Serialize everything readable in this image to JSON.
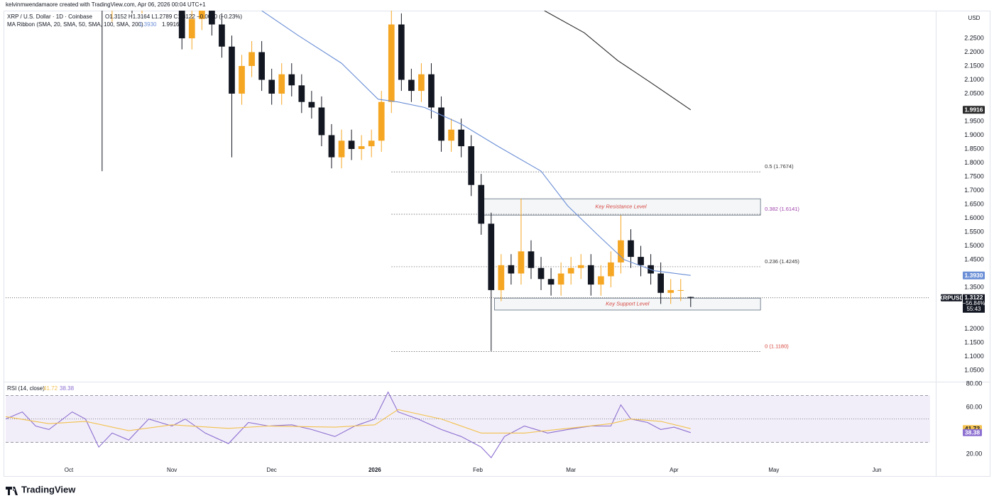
{
  "watermark": "kelvinmwendamaore created with TradingView.com, Apr 06, 2026 00:04 UTC+1",
  "logo": "TradingView",
  "chart_data": [
    {
      "type": "candlestick",
      "title": "XRP / U.S. Dollar · 1D · Coinbase",
      "ohlc_text": "O1.3152 H1.3164 L1.2789 C1.3122 −0.0030 (−0.23%)",
      "currency": "USD",
      "up_color": "#f5a623",
      "down_color": "#131722",
      "x": [
        4,
        7,
        10,
        13,
        16,
        19,
        22,
        25,
        28,
        31,
        34,
        37,
        40,
        43,
        46,
        49,
        52,
        55,
        58,
        61,
        64,
        67,
        70,
        73,
        76,
        79,
        82,
        85,
        88,
        91,
        94,
        97,
        100,
        103,
        106,
        109,
        112,
        115,
        118,
        121,
        124,
        127,
        130,
        133,
        136,
        139,
        142,
        145,
        148,
        151,
        154,
        157,
        160,
        163,
        166,
        169,
        172,
        175,
        178,
        181,
        184,
        187
      ],
      "open": [
        3.0,
        2.95,
        2.85,
        2.35,
        2.4,
        2.45,
        2.38,
        2.4,
        2.55,
        2.5,
        2.45,
        2.25,
        2.32,
        2.38,
        2.3,
        2.22,
        2.05,
        2.15,
        2.2,
        2.1,
        2.05,
        2.12,
        2.08,
        2.02,
        2.0,
        1.9,
        1.82,
        1.88,
        1.85,
        1.86,
        1.88,
        2.02,
        2.3,
        2.1,
        2.06,
        2.12,
        2.0,
        1.88,
        1.92,
        1.86,
        1.72,
        1.58,
        1.34,
        1.43,
        1.4,
        1.48,
        1.42,
        1.38,
        1.36,
        1.4,
        1.42,
        1.43,
        1.36,
        1.39,
        1.44,
        1.52,
        1.46,
        1.43,
        1.4,
        1.33,
        1.34,
        1.3152
      ],
      "high": [
        3.04,
        2.99,
        2.89,
        2.44,
        2.49,
        2.49,
        2.44,
        2.59,
        2.59,
        2.54,
        2.49,
        2.36,
        2.42,
        2.42,
        2.34,
        2.26,
        2.19,
        2.24,
        2.24,
        2.14,
        2.16,
        2.16,
        2.12,
        2.06,
        2.04,
        1.94,
        1.92,
        1.92,
        1.9,
        1.92,
        2.06,
        2.36,
        2.34,
        2.14,
        2.16,
        2.16,
        2.04,
        1.96,
        1.96,
        1.9,
        1.76,
        1.62,
        1.47,
        1.47,
        1.67,
        1.52,
        1.46,
        1.42,
        1.44,
        1.46,
        1.47,
        1.47,
        1.43,
        1.48,
        1.61,
        1.56,
        1.5,
        1.47,
        1.44,
        1.38,
        1.38,
        1.3164
      ],
      "low": [
        2.91,
        2.81,
        1.77,
        2.31,
        2.36,
        2.34,
        2.34,
        2.36,
        2.46,
        2.41,
        2.21,
        2.21,
        2.28,
        2.26,
        2.18,
        1.82,
        2.01,
        2.11,
        2.06,
        2.01,
        2.01,
        2.04,
        1.98,
        1.96,
        1.86,
        1.78,
        1.78,
        1.81,
        1.81,
        1.82,
        1.84,
        1.98,
        2.06,
        2.02,
        2.02,
        1.96,
        1.84,
        1.84,
        1.82,
        1.68,
        1.54,
        1.12,
        1.3,
        1.36,
        1.36,
        1.38,
        1.34,
        1.32,
        1.32,
        1.36,
        1.38,
        1.32,
        1.32,
        1.35,
        1.4,
        1.42,
        1.39,
        1.36,
        1.29,
        1.29,
        1.3,
        1.2789
      ],
      "close": [
        2.95,
        2.85,
        2.35,
        2.4,
        2.45,
        2.38,
        2.4,
        2.55,
        2.5,
        2.45,
        2.25,
        2.32,
        2.38,
        2.3,
        2.22,
        2.05,
        2.15,
        2.2,
        2.1,
        2.05,
        2.12,
        2.08,
        2.02,
        2.0,
        1.9,
        1.82,
        1.88,
        1.85,
        1.86,
        1.88,
        2.02,
        2.3,
        2.1,
        2.06,
        2.12,
        2.0,
        1.88,
        1.92,
        1.86,
        1.72,
        1.58,
        1.34,
        1.43,
        1.4,
        1.48,
        1.42,
        1.38,
        1.36,
        1.4,
        1.42,
        1.43,
        1.36,
        1.39,
        1.44,
        1.52,
        1.46,
        1.43,
        1.4,
        1.33,
        1.34,
        1.34,
        1.3122
      ],
      "xlim": [
        -19,
        259
      ],
      "xticks": [
        {
          "value": 0,
          "label": "Oct"
        },
        {
          "value": 31,
          "label": "Nov"
        },
        {
          "value": 61,
          "label": "Dec"
        },
        {
          "value": 92,
          "label": "2026"
        },
        {
          "value": 123,
          "label": "Feb"
        },
        {
          "value": 151,
          "label": "Mar"
        },
        {
          "value": 182,
          "label": "Apr"
        },
        {
          "value": 212,
          "label": "May"
        },
        {
          "value": 243,
          "label": "Jun"
        }
      ],
      "ylim": [
        1.009,
        2.35
      ],
      "yticks": [
        {
          "value": 2.25,
          "label": "2.2500"
        },
        {
          "value": 2.2,
          "label": "2.2000"
        },
        {
          "value": 2.15,
          "label": "2.1500"
        },
        {
          "value": 2.1,
          "label": "2.1000"
        },
        {
          "value": 2.05,
          "label": "2.0500"
        },
        {
          "value": 1.95,
          "label": "1.9500"
        },
        {
          "value": 1.9,
          "label": "1.9000"
        },
        {
          "value": 1.85,
          "label": "1.8500"
        },
        {
          "value": 1.8,
          "label": "1.8000"
        },
        {
          "value": 1.75,
          "label": "1.7500"
        },
        {
          "value": 1.7,
          "label": "1.7000"
        },
        {
          "value": 1.65,
          "label": "1.6500"
        },
        {
          "value": 1.6,
          "label": "1.6000"
        },
        {
          "value": 1.55,
          "label": "1.5500"
        },
        {
          "value": 1.5,
          "label": "1.5000"
        },
        {
          "value": 1.45,
          "label": "1.4500"
        },
        {
          "value": 1.35,
          "label": "1.3500"
        },
        {
          "value": 1.2,
          "label": "1.2000"
        },
        {
          "value": 1.15,
          "label": "1.1500"
        },
        {
          "value": 1.1,
          "label": "1.1000"
        },
        {
          "value": 1.05,
          "label": "1.0500"
        }
      ],
      "symbol": "XRPUSD",
      "change": "−56.84%",
      "countdown": "55:43",
      "indicator": "MA Ribbon (SMA, 20, SMA, 50, SMA, 100, SMA, 200)",
      "lines": [
        {
          "color": "#6b8fd6",
          "value_label": "1.3930",
          "x": [
            58,
            69,
            82,
            93,
            99,
            107,
            118,
            129,
            142,
            150,
            159,
            167,
            176,
            187
          ],
          "values": [
            2.35,
            2.26,
            2.16,
            2.03,
            2.02,
            2.0,
            1.94,
            1.86,
            1.77,
            1.645,
            1.54,
            1.45,
            1.41,
            1.393
          ]
        },
        {
          "color": "#2a2a2a",
          "value_label": "1.9916",
          "x": [
            143,
            155,
            165,
            175,
            187
          ],
          "values": [
            2.35,
            2.27,
            2.17,
            2.09,
            1.9916
          ]
        }
      ],
      "fib_x": [
        97,
        208
      ],
      "fib": [
        {
          "label": "0.5 (1.7674)",
          "value": 1.7674,
          "color": "#333333"
        },
        {
          "label": "0.382 (1.6141)",
          "value": 1.6141,
          "color": "#9c3fa8"
        },
        {
          "label": "0.236 (1.4245)",
          "value": 1.4245,
          "color": "#333333"
        },
        {
          "label": "0 (1.1180)",
          "value": 1.118,
          "color": "#d6453d"
        }
      ],
      "zones": [
        {
          "label": "Key Resistance Level",
          "range": [
            1.611,
            1.67
          ],
          "x": [
            124,
            208
          ]
        },
        {
          "label": "Key Support Level",
          "range": [
            1.268,
            1.311
          ],
          "x": [
            128,
            208
          ]
        }
      ]
    },
    {
      "type": "line",
      "title": "RSI (14, close)",
      "xlim": [
        -19,
        259
      ],
      "ylim": [
        11,
        80.6
      ],
      "yticks": [
        {
          "value": 80,
          "label": "80.00"
        },
        {
          "value": 60,
          "label": "60.00"
        },
        {
          "value": 20,
          "label": "20.00"
        }
      ],
      "levels": [
        70,
        50,
        30
      ],
      "band_color": "#7e57c2",
      "series": [
        {
          "color": "#8c6fd1",
          "x": [
            -19,
            -14,
            -10,
            -6,
            1,
            5,
            9,
            13,
            18,
            24,
            31,
            35,
            41,
            48,
            54,
            60,
            67,
            73,
            80,
            86,
            92,
            96,
            99,
            105,
            112,
            118,
            124,
            127,
            131,
            137,
            144,
            150,
            157,
            163,
            166,
            169,
            174,
            178,
            182,
            187
          ],
          "values": [
            50,
            56,
            44,
            41,
            56,
            50,
            26,
            38,
            32,
            50,
            44,
            50,
            38,
            29,
            47,
            44,
            45,
            41,
            35,
            44,
            50,
            73,
            56,
            50,
            41,
            35,
            26,
            17,
            35,
            44,
            38,
            41,
            44,
            44,
            62,
            50,
            47,
            41,
            43,
            38.38
          ]
        },
        {
          "color": "#f2c14e",
          "x": [
            -19,
            -6,
            5,
            18,
            31,
            48,
            60,
            80,
            92,
            99,
            112,
            124,
            137,
            150,
            163,
            169,
            178,
            187
          ],
          "values": [
            52,
            46,
            48,
            40,
            45,
            42,
            44,
            43,
            45,
            58,
            50,
            38,
            38,
            42,
            46,
            50,
            48,
            41.72
          ]
        }
      ]
    }
  ]
}
